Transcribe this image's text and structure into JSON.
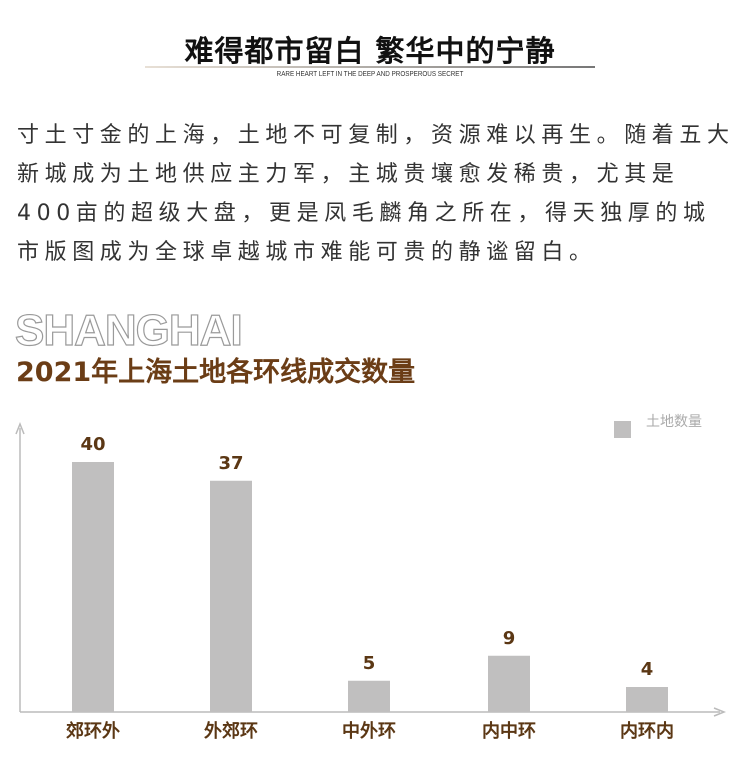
{
  "header": {
    "title": "难得都市留白 繁华中的宁静",
    "subtitle": "RARE HEART LEFT IN THE DEEP AND PROSPEROUS SECRET"
  },
  "paragraph": "寸土寸金的上海，土地不可复制，资源难以再生。随着五大新城成为土地供应主力军，主城贵壤愈发稀贵，尤其是400亩的超级大盘，更是凤毛麟角之所在，得天独厚的城市版图成为全球卓越城市难能可贵的静谧留白。",
  "brand": "SHANGHAI",
  "chart_data": {
    "type": "bar",
    "title": "2021年上海土地各环线成交数量",
    "categories": [
      "郊环外",
      "外郊环",
      "中外环",
      "内中环",
      "内环内"
    ],
    "series": [
      {
        "name": "土地数量",
        "values": [
          40,
          37,
          5,
          9,
          4
        ],
        "color": "#c0bfbf"
      }
    ],
    "ylim": [
      0,
      45
    ],
    "grid": false,
    "legend": "top-right",
    "label_color": "#5b3714"
  }
}
